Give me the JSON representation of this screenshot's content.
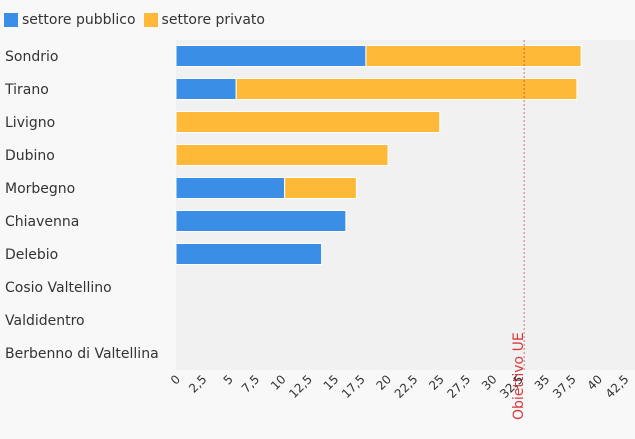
{
  "chart_data": {
    "type": "bar",
    "orientation": "horizontal",
    "stacked": true,
    "categories": [
      "Sondrio",
      "Tirano",
      "Livigno",
      "Dubino",
      "Morbegno",
      "Chiavenna",
      "Delebio",
      "Cosio Valtellino",
      "Valdidentro",
      "Berbenno di Valtellina"
    ],
    "series": [
      {
        "name": "settore pubblico",
        "color": "#3a8ee6",
        "values": [
          18.0,
          5.7,
          0,
          0,
          10.3,
          16.1,
          13.8,
          0,
          0,
          0
        ]
      },
      {
        "name": "settore privato",
        "color": "#ffb938",
        "values": [
          20.4,
          32.3,
          25.0,
          20.1,
          6.8,
          0,
          0,
          0,
          0,
          0
        ]
      }
    ],
    "x_ticks": [
      "0",
      "2,5",
      "5",
      "7,5",
      "10",
      "12,5",
      "15",
      "17,5",
      "20",
      "22,5",
      "25",
      "27,5",
      "30",
      "32,5",
      "35",
      "37,5",
      "40",
      "42,5"
    ],
    "xlim": [
      0,
      42.5
    ],
    "reference_line": {
      "value": 33.0,
      "label": "Obiettivo UE",
      "color": "#d63a3a"
    },
    "legend_position": "top-left",
    "grid": false
  }
}
